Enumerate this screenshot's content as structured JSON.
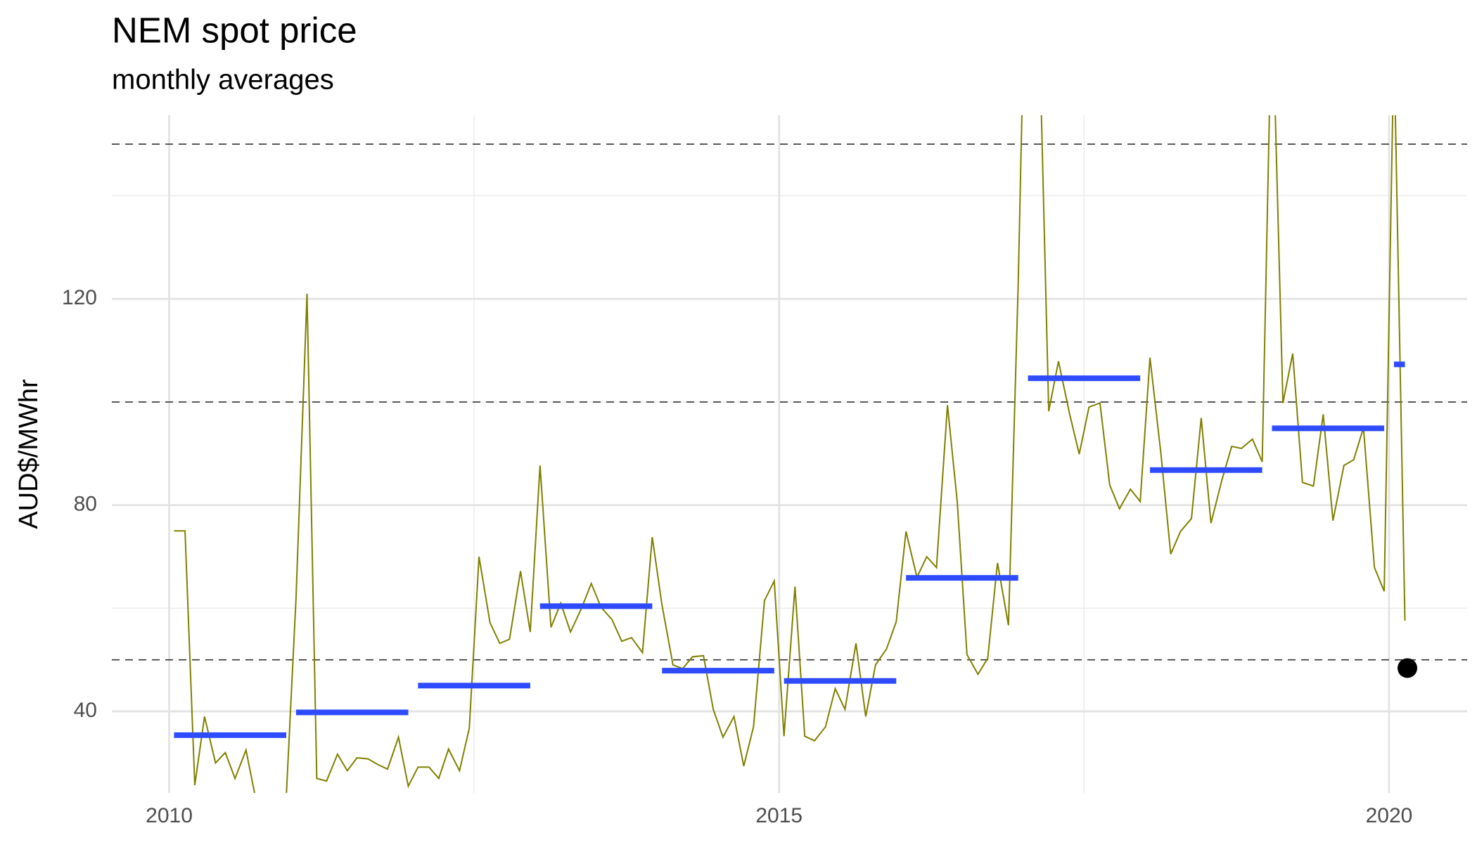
{
  "chart_data": {
    "type": "line",
    "title": "NEM spot price",
    "subtitle": "monthly averages",
    "y_label": "AUD$/MWhr",
    "color": "#808000",
    "x": [
      2010.04,
      2010.13,
      2010.21,
      2010.29,
      2010.38,
      2010.46,
      2010.54,
      2010.63,
      2010.71,
      2010.79,
      2010.88,
      2010.96,
      2011.04,
      2011.13,
      2011.21,
      2011.29,
      2011.38,
      2011.46,
      2011.54,
      2011.63,
      2011.71,
      2011.79,
      2011.88,
      2011.96,
      2012.04,
      2012.13,
      2012.21,
      2012.29,
      2012.38,
      2012.46,
      2012.54,
      2012.63,
      2012.71,
      2012.79,
      2012.88,
      2012.96,
      2013.04,
      2013.13,
      2013.21,
      2013.29,
      2013.38,
      2013.46,
      2013.54,
      2013.63,
      2013.71,
      2013.79,
      2013.88,
      2013.96,
      2014.04,
      2014.13,
      2014.21,
      2014.29,
      2014.38,
      2014.46,
      2014.54,
      2014.63,
      2014.71,
      2014.79,
      2014.88,
      2014.96,
      2015.04,
      2015.13,
      2015.21,
      2015.29,
      2015.38,
      2015.46,
      2015.54,
      2015.63,
      2015.71,
      2015.79,
      2015.88,
      2015.96,
      2016.04,
      2016.13,
      2016.21,
      2016.29,
      2016.38,
      2016.46,
      2016.54,
      2016.63,
      2016.71,
      2016.79,
      2016.88,
      2016.96,
      2017.04,
      2017.13,
      2017.21,
      2017.29,
      2017.38,
      2017.46,
      2017.54,
      2017.63,
      2017.71,
      2017.79,
      2017.88,
      2017.96,
      2018.04,
      2018.13,
      2018.21,
      2018.29,
      2018.38,
      2018.46,
      2018.54,
      2018.63,
      2018.71,
      2018.79,
      2018.88,
      2018.96,
      2019.04,
      2019.13,
      2019.21,
      2019.29,
      2019.38,
      2019.46,
      2019.54,
      2019.63,
      2019.71,
      2019.79,
      2019.88,
      2019.96,
      2020.04,
      2020.13
    ],
    "values": [
      75,
      75,
      25.7,
      39,
      30,
      32,
      27,
      32.5,
      23,
      20,
      20,
      23.5,
      62,
      121,
      27,
      26.5,
      31.7,
      28.5,
      31,
      30.8,
      29.7,
      28.8,
      35,
      25.5,
      29.2,
      29.2,
      27,
      32.7,
      28.5,
      36.7,
      70,
      57.2,
      53.2,
      54,
      67.2,
      55.4,
      87.7,
      56.3,
      61,
      55.4,
      60,
      64.8,
      60.2,
      57.8,
      53.6,
      54.3,
      51.4,
      73.8,
      60.6,
      49,
      48.3,
      50.6,
      50.8,
      40.4,
      35,
      39,
      29.4,
      37,
      61.5,
      65.3,
      35.2,
      64.2,
      35.2,
      34.3,
      37,
      44.4,
      40.4,
      53.2,
      39,
      49,
      52.1,
      57.4,
      74.9,
      66,
      70,
      67.9,
      99.4,
      80.7,
      51,
      47.2,
      50.3,
      68.8,
      56.7,
      123,
      210,
      175,
      98.2,
      107.9,
      97.8,
      89.9,
      99,
      99.8,
      83.9,
      79.3,
      83.1,
      80.7,
      108.6,
      89.9,
      70.5,
      74.9,
      77.4,
      96.9,
      76.5,
      84.9,
      91.4,
      91,
      92.8,
      88.4,
      180,
      99.8,
      109.4,
      84.4,
      83.7,
      97.6,
      77,
      87.7,
      88.8,
      95,
      67.9,
      63.3,
      170,
      57.6
    ],
    "annual": {
      "color": "#2e4bff",
      "x_start": [
        2010.04,
        2011.04,
        2012.04,
        2013.04,
        2014.04,
        2015.04,
        2016.04,
        2017.04,
        2018.04,
        2019.04,
        2020.04
      ],
      "x_end": [
        2010.96,
        2011.96,
        2012.96,
        2013.96,
        2014.96,
        2015.96,
        2016.96,
        2017.96,
        2018.96,
        2019.96,
        2020.13
      ],
      "values": [
        35.4,
        39.8,
        45,
        60.4,
        47.9,
        45.9,
        65.9,
        104.6,
        86.8,
        94.9,
        107.3
      ]
    },
    "reference_lines": [
      50,
      100,
      150
    ],
    "point": {
      "x": 2020.15,
      "y": 48.4,
      "color": "#000000"
    },
    "xlim": [
      2009.53,
      2020.64
    ],
    "ylim": [
      24.2,
      155.6
    ],
    "xticks": [
      2010,
      2015,
      2020
    ],
    "yticks": [
      40,
      80,
      120
    ],
    "x_minor_ticks": [
      2012.5,
      2017.5
    ],
    "y_minor_ticks": [
      60,
      100,
      140
    ],
    "grid": true
  }
}
